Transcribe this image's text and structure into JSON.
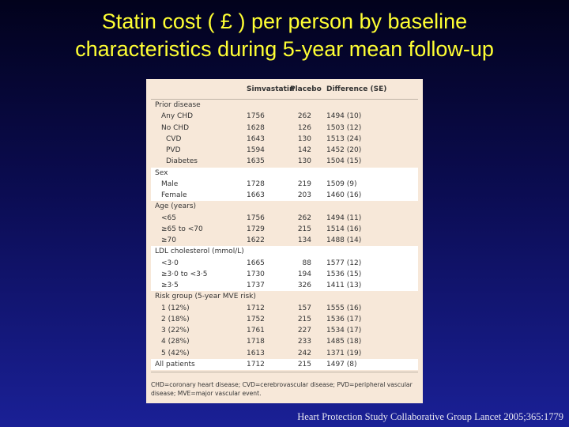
{
  "slide": {
    "title_line1": "Statin cost ( £ ) per person by baseline",
    "title_line2": "characteristics during 5-year mean follow-up",
    "citation": "Heart Protection Study Collaborative Group Lancet 2005;365:1779"
  },
  "table": {
    "headers": {
      "col1": "Simvastatin",
      "col2": "Placebo",
      "col3": "Difference (SE)"
    },
    "rows": [
      {
        "label": "Prior disease",
        "sim": "",
        "plc": "",
        "diff": "",
        "indent": 0,
        "band": false
      },
      {
        "label": "Any CHD",
        "sim": "1756",
        "plc": "262",
        "diff": "1494 (10)",
        "indent": 1,
        "band": false
      },
      {
        "label": "No CHD",
        "sim": "1628",
        "plc": "126",
        "diff": "1503 (12)",
        "indent": 1,
        "band": false
      },
      {
        "label": "CVD",
        "sim": "1643",
        "plc": "130",
        "diff": "1513 (24)",
        "indent": 2,
        "band": false
      },
      {
        "label": "PVD",
        "sim": "1594",
        "plc": "142",
        "diff": "1452 (20)",
        "indent": 2,
        "band": false
      },
      {
        "label": "Diabetes",
        "sim": "1635",
        "plc": "130",
        "diff": "1504 (15)",
        "indent": 2,
        "band": false
      },
      {
        "label": "Sex",
        "sim": "",
        "plc": "",
        "diff": "",
        "indent": 0,
        "band": true
      },
      {
        "label": "Male",
        "sim": "1728",
        "plc": "219",
        "diff": "1509 (9)",
        "indent": 1,
        "band": true
      },
      {
        "label": "Female",
        "sim": "1663",
        "plc": "203",
        "diff": "1460 (16)",
        "indent": 1,
        "band": true
      },
      {
        "label": "Age (years)",
        "sim": "",
        "plc": "",
        "diff": "",
        "indent": 0,
        "band": false
      },
      {
        "label": "<65",
        "sim": "1756",
        "plc": "262",
        "diff": "1494 (11)",
        "indent": 1,
        "band": false
      },
      {
        "label": "≥65 to <70",
        "sim": "1729",
        "plc": "215",
        "diff": "1514 (16)",
        "indent": 1,
        "band": false
      },
      {
        "label": "≥70",
        "sim": "1622",
        "plc": "134",
        "diff": "1488 (14)",
        "indent": 1,
        "band": false
      },
      {
        "label": "LDL cholesterol (mmol/L)",
        "sim": "",
        "plc": "",
        "diff": "",
        "indent": 0,
        "band": true
      },
      {
        "label": "<3·0",
        "sim": "1665",
        "plc": "88",
        "diff": "1577 (12)",
        "indent": 1,
        "band": true
      },
      {
        "label": "≥3·0 to <3·5",
        "sim": "1730",
        "plc": "194",
        "diff": "1536 (15)",
        "indent": 1,
        "band": true
      },
      {
        "label": "≥3·5",
        "sim": "1737",
        "plc": "326",
        "diff": "1411 (13)",
        "indent": 1,
        "band": true
      },
      {
        "label": "Risk group (5-year MVE risk)",
        "sim": "",
        "plc": "",
        "diff": "",
        "indent": 0,
        "band": false
      },
      {
        "label": "1 (12%)",
        "sim": "1712",
        "plc": "157",
        "diff": "1555 (16)",
        "indent": 1,
        "band": false
      },
      {
        "label": "2 (18%)",
        "sim": "1752",
        "plc": "215",
        "diff": "1536 (17)",
        "indent": 1,
        "band": false
      },
      {
        "label": "3 (22%)",
        "sim": "1761",
        "plc": "227",
        "diff": "1534 (17)",
        "indent": 1,
        "band": false
      },
      {
        "label": "4 (28%)",
        "sim": "1718",
        "plc": "233",
        "diff": "1485 (18)",
        "indent": 1,
        "band": false
      },
      {
        "label": "5 (42%)",
        "sim": "1613",
        "plc": "242",
        "diff": "1371 (19)",
        "indent": 1,
        "band": false
      },
      {
        "label": "All patients",
        "sim": "1712",
        "plc": "215",
        "diff": "1497 (8)",
        "indent": 0,
        "band": true
      }
    ],
    "footnote": "CHD=coronary heart disease; CVD=cerebrovascular disease; PVD=peripheral vascular disease; MVE=major vascular event."
  }
}
